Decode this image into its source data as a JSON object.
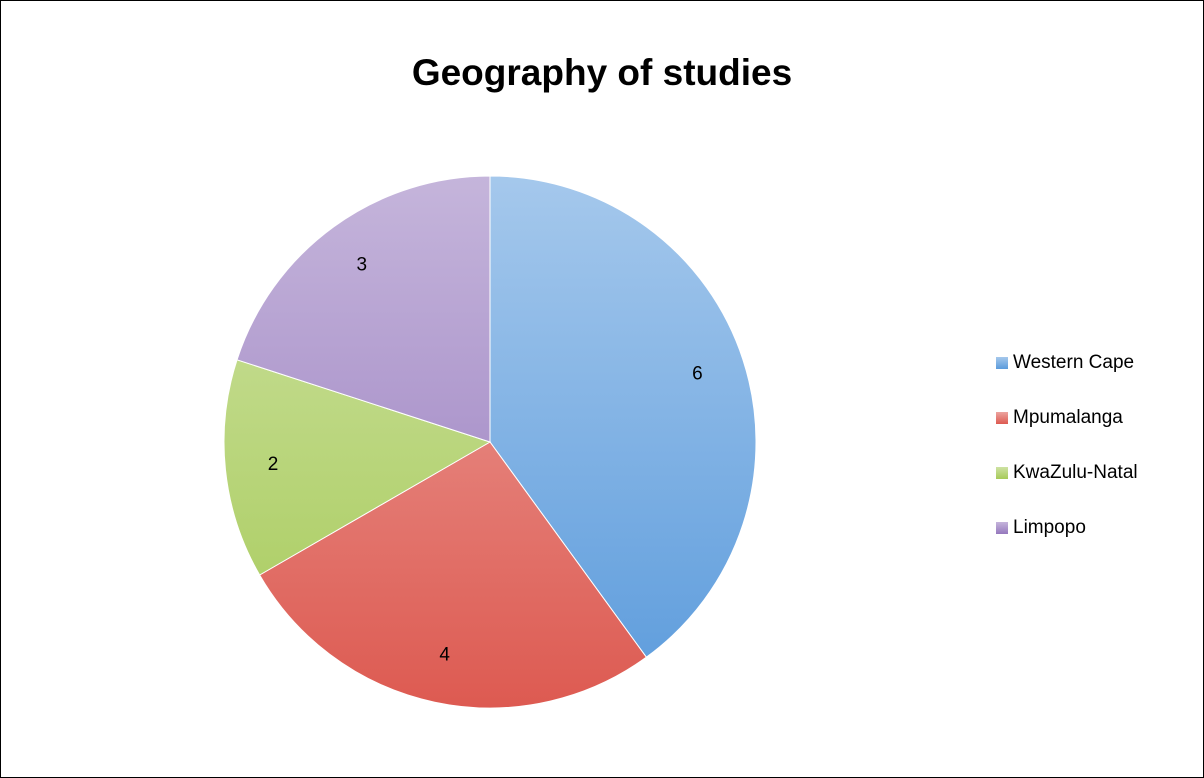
{
  "chart_data": {
    "type": "pie",
    "title": "Geography of studies",
    "categories": [
      "Western Cape",
      "Mpumalanga",
      "KwaZulu-Natal",
      "Limpopo"
    ],
    "values": [
      6,
      4,
      2,
      3
    ],
    "colors": [
      "#5b9bdc",
      "#dd5a51",
      "#a6ca58",
      "#9578bd"
    ],
    "legend": "right"
  }
}
